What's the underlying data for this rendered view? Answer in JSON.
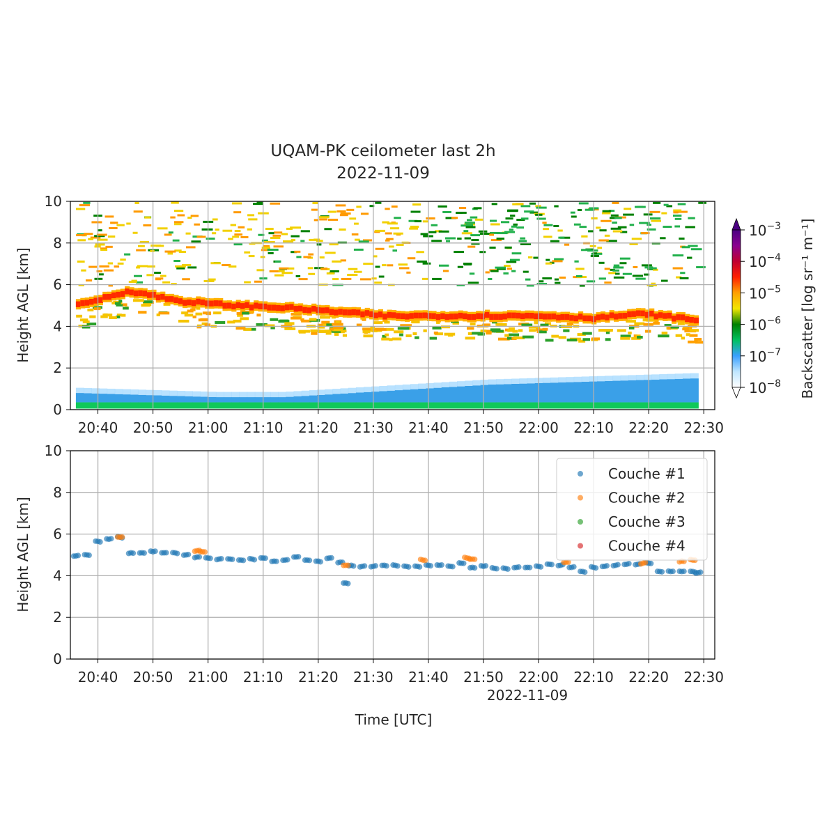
{
  "figure": {
    "title": "UQAM-PK ceilometer last 2h",
    "date": "2022-11-09"
  },
  "chart_data": [
    {
      "type": "heatmap",
      "ylabel": "Height AGL [km]",
      "ylim": [
        0,
        10
      ],
      "yticks": [
        "0",
        "2",
        "4",
        "6",
        "8",
        "10"
      ],
      "xticks": [
        "20:40",
        "20:50",
        "21:00",
        "21:10",
        "21:20",
        "21:30",
        "21:40",
        "21:50",
        "22:00",
        "22:10",
        "22:20",
        "22:30"
      ],
      "xlim": [
        "20:35",
        "22:32"
      ],
      "grid": true,
      "colorbar": {
        "label": "Backscatter  [log sr⁻¹ m⁻¹]",
        "scale": "log",
        "range": [
          1e-08,
          0.001
        ],
        "ticks": [
          {
            "base": "10",
            "exp": "−3"
          },
          {
            "base": "10",
            "exp": "−4"
          },
          {
            "base": "10",
            "exp": "−5"
          },
          {
            "base": "10",
            "exp": "−6"
          },
          {
            "base": "10",
            "exp": "−7"
          },
          {
            "base": "10",
            "exp": "−8"
          }
        ],
        "extend": "both"
      },
      "features": [
        {
          "name": "cloud layer",
          "start": "20:36",
          "end": "22:29",
          "height_km": [
            5.0,
            5.7,
            5.2,
            5.0,
            4.9,
            4.7,
            4.5,
            4.5,
            4.5,
            4.5,
            4.4,
            4.6,
            4.3
          ],
          "level": 0.0001
        },
        {
          "name": "boundary layer",
          "start": "20:36",
          "end": "22:29",
          "top_km": [
            0.8,
            0.7,
            0.6,
            0.6,
            0.8,
            1.0,
            1.2,
            1.3,
            1.4,
            1.5
          ],
          "level": 1e-07
        }
      ]
    },
    {
      "type": "scatter",
      "ylabel": "Height AGL [km]",
      "xlabel": "Time [UTC]",
      "xticks": [
        "20:40",
        "20:50",
        "21:00",
        "21:10",
        "21:20",
        "21:30",
        "21:40",
        "21:50",
        "22:00",
        "22:10",
        "22:20",
        "22:30"
      ],
      "xtick_sublabel": "2022-11-09",
      "yticks": [
        "0",
        "2",
        "4",
        "6",
        "8",
        "10"
      ],
      "ylim": [
        0,
        10
      ],
      "grid": true,
      "legend_position": "top-right",
      "series": [
        {
          "name": "Couche #1",
          "color": "#1f77b4",
          "x": [
            "20:36",
            "20:38",
            "20:40",
            "20:42",
            "20:44",
            "20:46",
            "20:48",
            "20:50",
            "20:52",
            "20:54",
            "20:56",
            "20:58",
            "21:00",
            "21:02",
            "21:04",
            "21:06",
            "21:08",
            "21:10",
            "21:12",
            "21:14",
            "21:16",
            "21:18",
            "21:20",
            "21:22",
            "21:24",
            "21:25",
            "21:26",
            "21:28",
            "21:30",
            "21:32",
            "21:34",
            "21:36",
            "21:38",
            "21:40",
            "21:42",
            "21:44",
            "21:46",
            "21:48",
            "21:50",
            "21:52",
            "21:54",
            "21:56",
            "21:58",
            "22:00",
            "22:02",
            "22:04",
            "22:06",
            "22:08",
            "22:10",
            "22:12",
            "22:14",
            "22:16",
            "22:18",
            "22:20",
            "22:22",
            "22:24",
            "22:26",
            "22:28",
            "22:29"
          ],
          "y": [
            4.95,
            5.0,
            5.65,
            5.75,
            5.85,
            5.1,
            5.1,
            5.15,
            5.1,
            5.1,
            5.0,
            4.9,
            4.85,
            4.8,
            4.8,
            4.75,
            4.8,
            4.85,
            4.7,
            4.75,
            4.9,
            4.75,
            4.7,
            4.85,
            4.65,
            3.65,
            4.5,
            4.45,
            4.45,
            4.5,
            4.5,
            4.45,
            4.45,
            4.5,
            4.5,
            4.45,
            4.6,
            4.4,
            4.45,
            4.35,
            4.35,
            4.4,
            4.4,
            4.45,
            4.55,
            4.5,
            4.4,
            4.2,
            4.4,
            4.45,
            4.5,
            4.55,
            4.55,
            4.6,
            4.2,
            4.2,
            4.2,
            4.2,
            4.15
          ]
        },
        {
          "name": "Couche #2",
          "color": "#ff7f0e",
          "x": [
            "20:44",
            "20:58",
            "20:59",
            "21:25",
            "21:39",
            "21:47",
            "21:48",
            "22:05",
            "22:19",
            "22:26",
            "22:28"
          ],
          "y": [
            5.85,
            5.2,
            5.15,
            4.5,
            4.75,
            4.85,
            4.8,
            4.65,
            4.6,
            4.7,
            4.75
          ]
        },
        {
          "name": "Couche #3",
          "color": "#2ca02c",
          "x": [],
          "y": []
        },
        {
          "name": "Couche #4",
          "color": "#d62728",
          "x": [],
          "y": []
        }
      ]
    }
  ]
}
